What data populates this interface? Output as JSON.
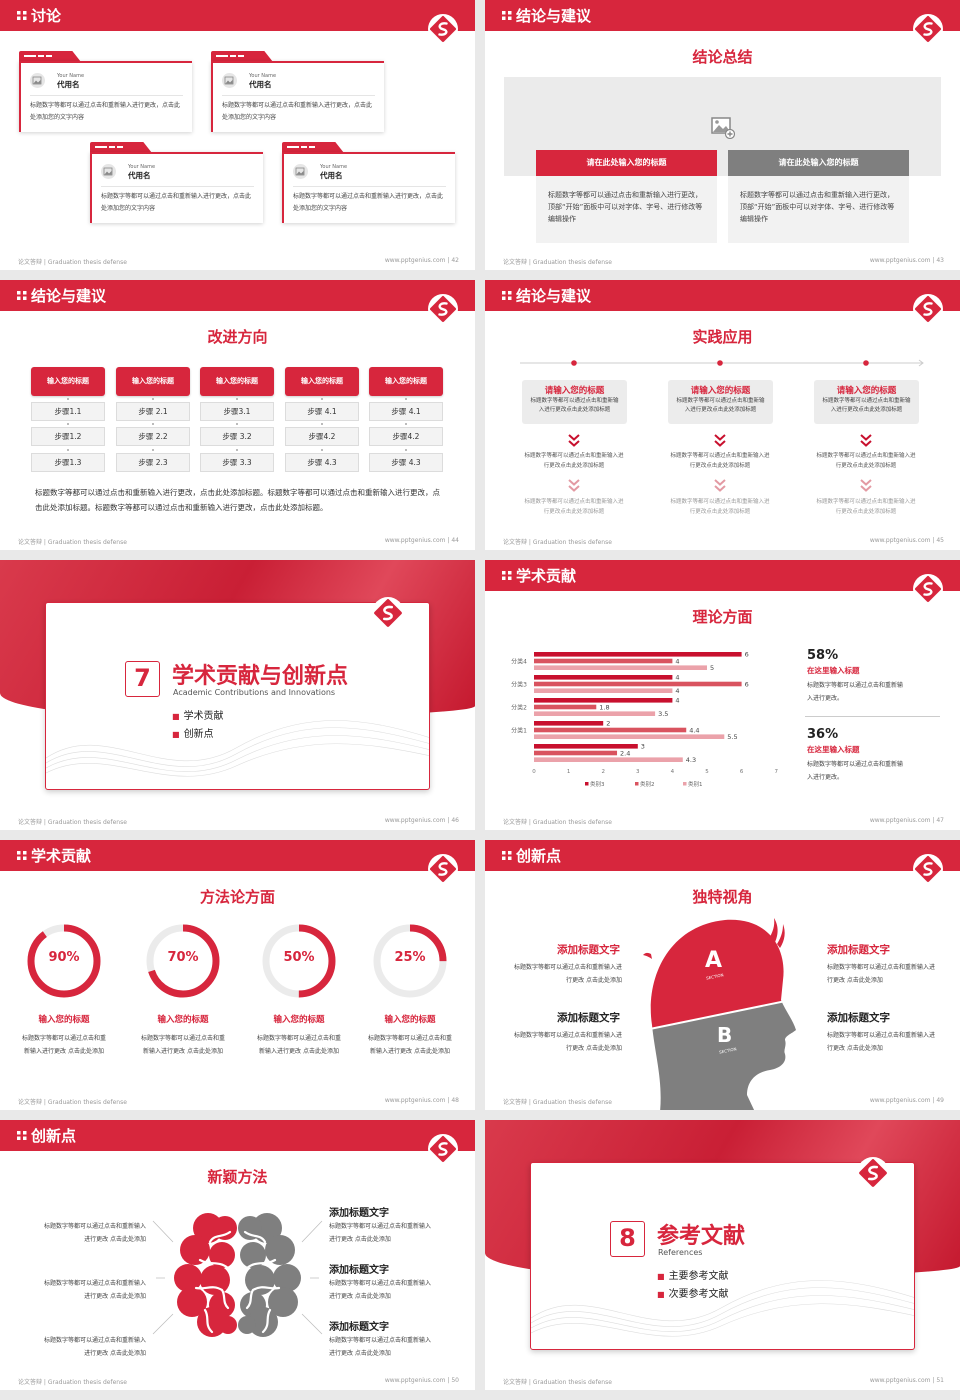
{
  "common": {
    "footer_left": "论文答辩 | Graduation thesis defense",
    "footer_url": "www.pptgenius.com | ",
    "accent": "#d7263d",
    "gray": "#7f7f7f",
    "logo_icon": "brand-logo"
  },
  "s42": {
    "title": "讨论",
    "page": "42",
    "cards": [
      {
        "name_en": "Your Name",
        "name": "代用名",
        "text": "标题数字等都可以通过点击和重新输入进行更改，点击此处添加您的文字内容"
      },
      {
        "name_en": "Your Name",
        "name": "代用名",
        "text": "标题数字等都可以通过点击和重新输入进行更改，点击此处添加您的文字内容"
      },
      {
        "name_en": "Your Name",
        "name": "代用名",
        "text": "标题数字等都可以通过点击和重新输入进行更改，点击此处添加您的文字内容"
      },
      {
        "name_en": "Your Name",
        "name": "代用名",
        "text": "标题数字等都可以通过点击和重新输入进行更改，点击此处添加您的文字内容"
      }
    ]
  },
  "s43": {
    "title": "结论与建议",
    "page": "43",
    "subtitle": "结论总结",
    "image_icon": "image-add-icon",
    "boxes": [
      {
        "heading": "请在此处输入您的标题",
        "text": "标题数字等都可以通过点击和重新输入进行更改，顶部“开始”面板中可以对字体、字号、进行修改等编辑操作"
      },
      {
        "heading": "请在此处输入您的标题",
        "text": "标题数字等都可以通过点击和重新输入进行更改，顶部“开始”面板中可以对字体、字号、进行修改等编辑操作"
      }
    ]
  },
  "s44": {
    "title": "结论与建议",
    "page": "44",
    "subtitle": "改进方向",
    "columns": [
      {
        "heading": "输入您的标题",
        "steps": [
          "步骤1.1",
          "步骤1.2",
          "步骤1.3"
        ]
      },
      {
        "heading": "输入您的标题",
        "steps": [
          "步骤 2.1",
          "步骤 2.2",
          "步骤 2.3"
        ]
      },
      {
        "heading": "输入您的标题",
        "steps": [
          "步骤3.1",
          "步骤 3.2",
          "步骤 3.3"
        ]
      },
      {
        "heading": "输入您的标题",
        "steps": [
          "步骤 4.1",
          "步骤4.2",
          "步骤 4.3"
        ]
      },
      {
        "heading": "输入您的标题",
        "steps": [
          "步骤 4.1",
          "步骤4.2",
          "步骤 4.3"
        ]
      }
    ],
    "paragraph": "标题数字等都可以通过点击和重新输入进行更改，点击此处添加标题。标题数字等都可以通过点击和重新输入进行更改，点击此处添加标题。标题数字等都可以通过点击和重新输入进行更改，点击此处添加标题。"
  },
  "s45": {
    "title": "结论与建议",
    "page": "45",
    "subtitle": "实践应用",
    "columns": [
      {
        "heading": "请输入您的标题",
        "text": "标题数字等都可以通过点击和重新输入进行更改点击此处添加标题",
        "step2": "标题数字等都可以通过点击和重新输入进行更改点击此处添加标题",
        "step3": "标题数字等都可以通过点击和重新输入进行更改点击此处添加标题"
      },
      {
        "heading": "请输入您的标题",
        "text": "标题数字等都可以通过点击和重新输入进行更改点击此处添加标题",
        "step2": "标题数字等都可以通过点击和重新输入进行更改点击此处添加标题",
        "step3": "标题数字等都可以通过点击和重新输入进行更改点击此处添加标题"
      },
      {
        "heading": "请输入您的标题",
        "text": "标题数字等都可以通过点击和重新输入进行更改点击此处添加标题",
        "step2": "标题数字等都可以通过点击和重新输入进行更改点击此处添加标题",
        "step3": "标题数字等都可以通过点击和重新输入进行更改点击此处添加标题"
      }
    ]
  },
  "s46": {
    "page": "46",
    "number": "7",
    "title": "学术贡献与创新点",
    "subtitle_en": "Academic Contributions and Innovations",
    "items": [
      "学术贡献",
      "创新点"
    ]
  },
  "s47": {
    "title": "学术贡献",
    "page": "47",
    "subtitle": "理论方面",
    "stats": [
      {
        "value": "58%",
        "heading": "在这里输入标题",
        "text": "标题数字等都可以通过点击和重新输入进行更改。"
      },
      {
        "value": "36%",
        "heading": "在这里输入标题",
        "text": "标题数字等都可以通过点击和重新输入进行更改。"
      }
    ]
  },
  "s48": {
    "title": "学术贡献",
    "page": "48",
    "subtitle": "方法论方面",
    "rings": [
      {
        "value": 90,
        "label": "90%",
        "heading": "输入您的标题",
        "text": "标题数字等都可以通过点击和重新输入进行更改 点击此处添加"
      },
      {
        "value": 70,
        "label": "70%",
        "heading": "输入您的标题",
        "text": "标题数字等都可以通过点击和重新输入进行更改 点击此处添加"
      },
      {
        "value": 50,
        "label": "50%",
        "heading": "输入您的标题",
        "text": "标题数字等都可以通过点击和重新输入进行更改 点击此处添加"
      },
      {
        "value": 25,
        "label": "25%",
        "heading": "输入您的标题",
        "text": "标题数字等都可以通过点击和重新输入进行更改 点击此处添加"
      }
    ]
  },
  "s49": {
    "title": "创新点",
    "page": "49",
    "subtitle": "独特视角",
    "section_a": "A",
    "section_b": "B",
    "section_word": "SECTION",
    "left": [
      {
        "heading": "添加标题文字",
        "text": "标题数字等都可以通过点击和重新输入进行更改 点击此处添加"
      },
      {
        "heading": "添加标题文字",
        "text": "标题数字等都可以通过点击和重新输入进行更改 点击此处添加"
      }
    ],
    "right": [
      {
        "heading": "添加标题文字",
        "text": "标题数字等都可以通过点击和重新输入进行更改 点击此处添加"
      },
      {
        "heading": "添加标题文字",
        "text": "标题数字等都可以通过点击和重新输入进行更改 点击此处添加"
      }
    ]
  },
  "s50": {
    "title": "创新点",
    "page": "50",
    "subtitle": "新颖方法",
    "left": [
      {
        "heading": "添加标题文字",
        "text": "标题数字等都可以通过点击和重新输入进行更改 点击此处添加"
      },
      {
        "heading": "添加标题文字",
        "text": "标题数字等都可以通过点击和重新输入进行更改 点击此处添加"
      },
      {
        "heading": "添加标题文字",
        "text": "标题数字等都可以通过点击和重新输入进行更改 点击此处添加"
      }
    ],
    "right": [
      {
        "heading": "添加标题文字",
        "text": "标题数字等都可以通过点击和重新输入进行更改 点击此处添加"
      },
      {
        "heading": "添加标题文字",
        "text": "标题数字等都可以通过点击和重新输入进行更改 点击此处添加"
      },
      {
        "heading": "添加标题文字",
        "text": "标题数字等都可以通过点击和重新输入进行更改 点击此处添加"
      }
    ]
  },
  "s51": {
    "page": "51",
    "number": "8",
    "title": "参考文献",
    "subtitle_en": "References",
    "items": [
      "主要参考文献",
      "次要参考文献"
    ]
  },
  "chart_data": {
    "type": "bar",
    "orientation": "horizontal",
    "categories": [
      "分类4",
      "分类3",
      "分类2",
      "分类1",
      ""
    ],
    "series": [
      {
        "name": "类别3",
        "color": "#c8102e",
        "values": [
          6,
          4,
          4,
          2,
          3
        ]
      },
      {
        "name": "类别2",
        "color": "#d9535f",
        "values": [
          4,
          6,
          1.8,
          4.4,
          2.4
        ]
      },
      {
        "name": "类别1",
        "color": "#eba2aa",
        "values": [
          5,
          4,
          3.5,
          5.5,
          4.3
        ]
      }
    ],
    "xlim": [
      0,
      7
    ],
    "xticks": [
      "0",
      "1",
      "2",
      "3",
      "4",
      "5",
      "6",
      "7"
    ],
    "data_labels": true,
    "grid": false,
    "legend": "bottom"
  }
}
